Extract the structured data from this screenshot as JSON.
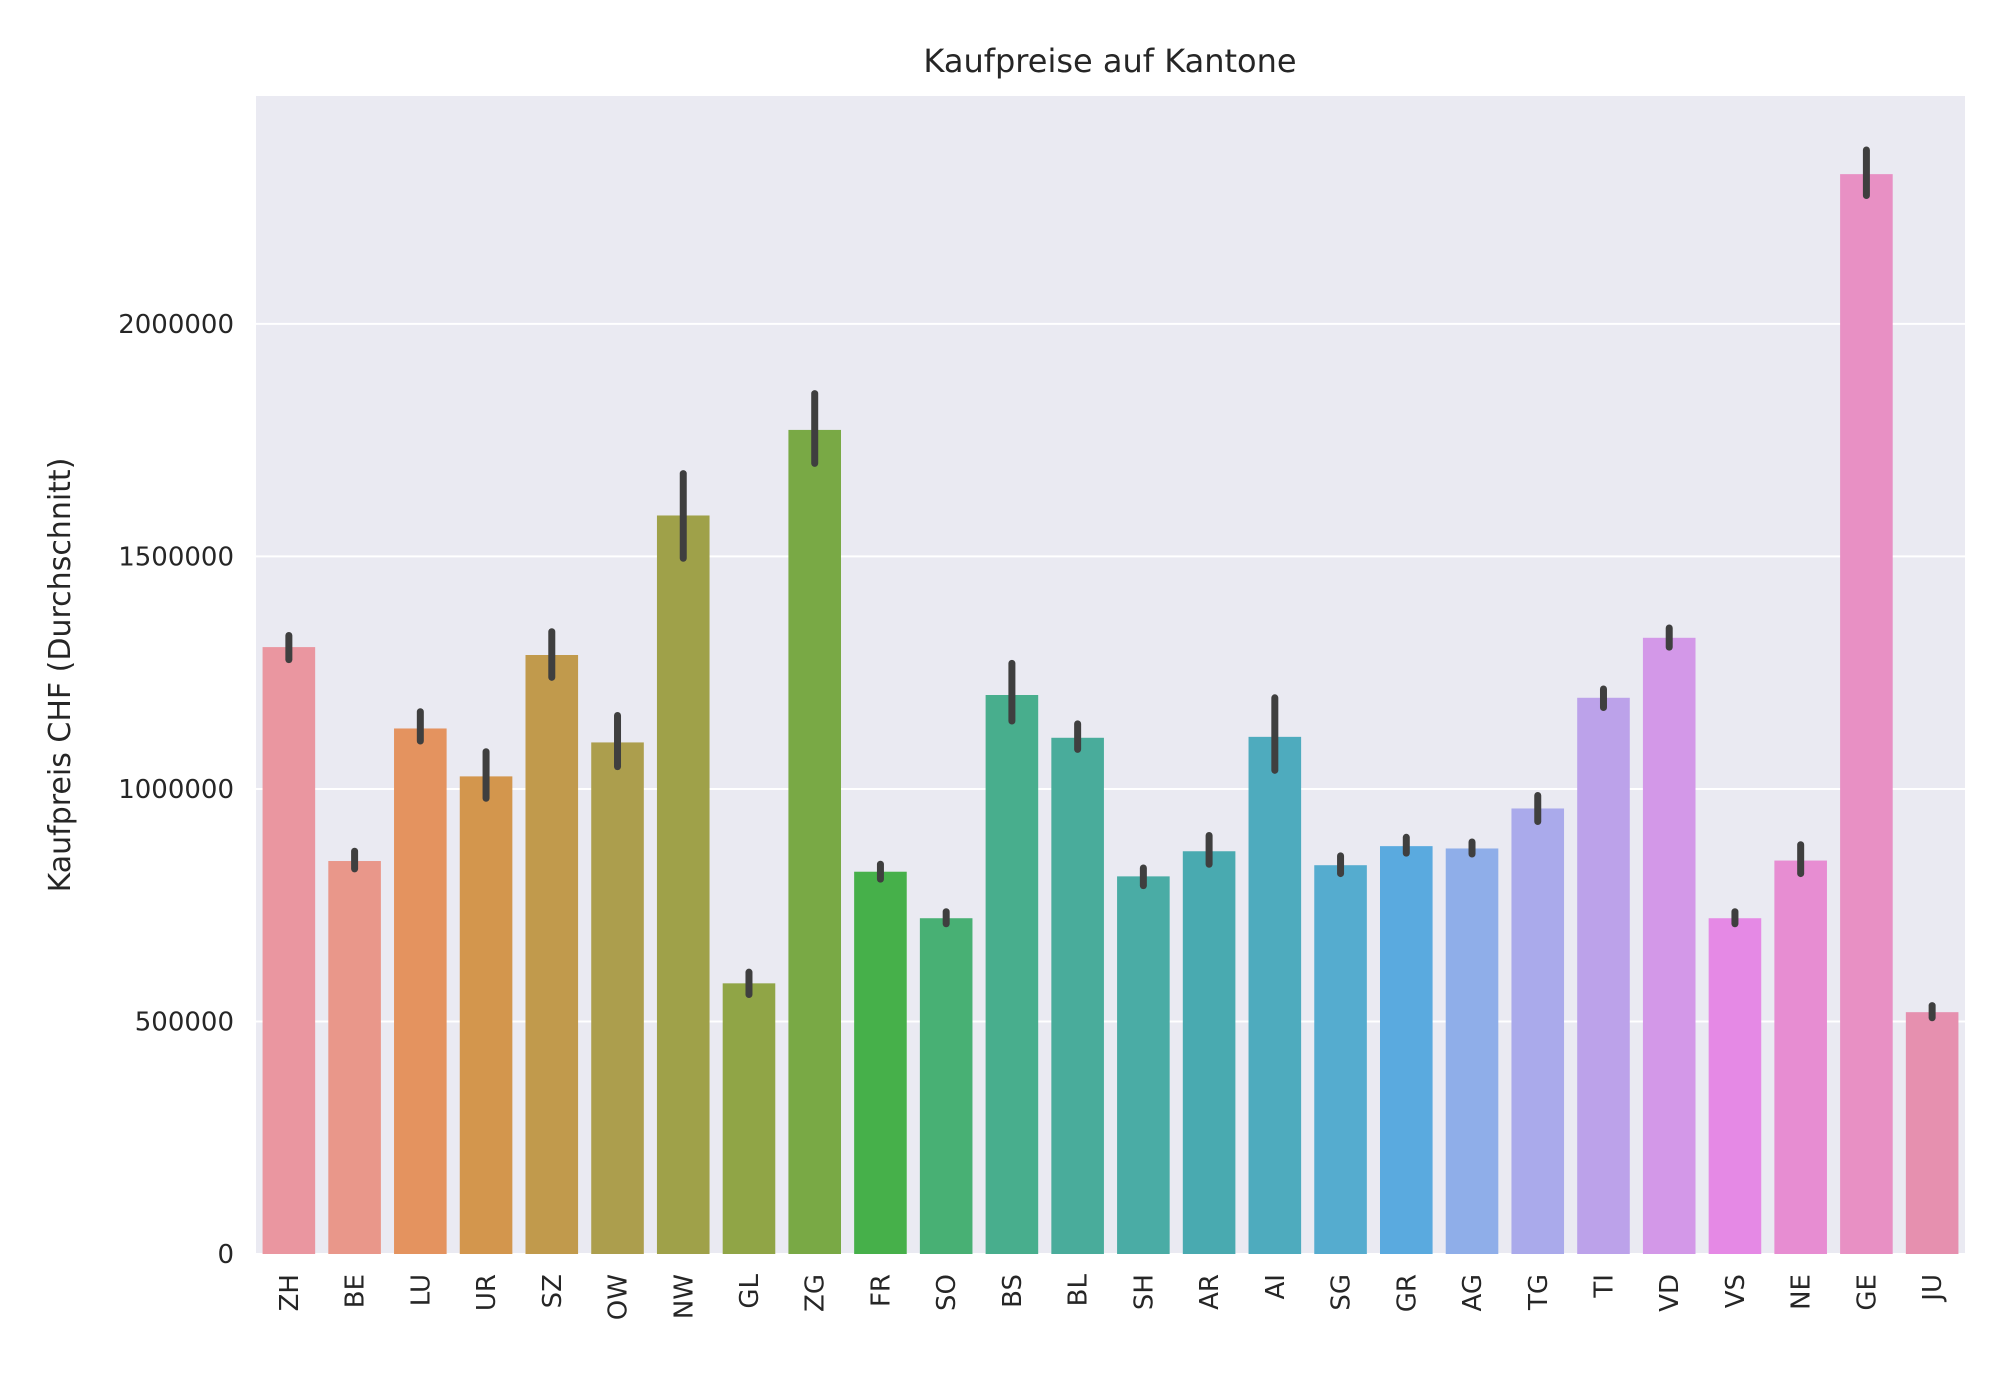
{
  "chart_data": {
    "type": "bar",
    "title": "Kaufpreise auf Kantone",
    "xlabel": "",
    "ylabel": "Kaufpreis CHF (Durchschnitt)",
    "ylim": [
      0,
      2490000
    ],
    "yticks": [
      0,
      500000,
      1000000,
      1500000,
      2000000
    ],
    "ytick_labels": [
      "0",
      "500000",
      "1000000",
      "1500000",
      "2000000"
    ],
    "grid": true,
    "categories": [
      "ZH",
      "BE",
      "LU",
      "UR",
      "SZ",
      "OW",
      "NW",
      "GL",
      "ZG",
      "FR",
      "SO",
      "BS",
      "BL",
      "SH",
      "AR",
      "AI",
      "SG",
      "GR",
      "AG",
      "TG",
      "TI",
      "VD",
      "VS",
      "NE",
      "GE",
      "JU"
    ],
    "values": [
      1305000,
      845000,
      1130000,
      1027000,
      1288000,
      1100000,
      1588000,
      582000,
      1772000,
      822000,
      722000,
      1202000,
      1110000,
      812000,
      866000,
      1112000,
      836000,
      877000,
      872000,
      958000,
      1196000,
      1325000,
      722000,
      846000,
      2322000,
      520000
    ],
    "ci_low": [
      1278000,
      828000,
      1103000,
      980000,
      1240000,
      1048000,
      1496000,
      558000,
      1700000,
      806000,
      710000,
      1146000,
      1085000,
      792000,
      838000,
      1040000,
      818000,
      862000,
      860000,
      930000,
      1175000,
      1305000,
      710000,
      818000,
      2276000,
      508000
    ],
    "ci_high": [
      1330000,
      866000,
      1166000,
      1080000,
      1338000,
      1158000,
      1678000,
      606000,
      1850000,
      838000,
      736000,
      1270000,
      1140000,
      830000,
      900000,
      1196000,
      856000,
      896000,
      886000,
      986000,
      1215000,
      1346000,
      736000,
      880000,
      2374000,
      534000
    ],
    "colors": [
      "#ea96a0",
      "#e9978a",
      "#e4935f",
      "#d3964d",
      "#c19a4c",
      "#ac9e4d",
      "#9fa149",
      "#90a546",
      "#79a945",
      "#46b04a",
      "#48b074",
      "#48ae8d",
      "#49ac9b",
      "#4aaca5",
      "#49aab0",
      "#4eabbe",
      "#55accf",
      "#5aaadf",
      "#8faee9",
      "#aaaaeb",
      "#bca2ea",
      "#d398e8",
      "#e589e5",
      "#e78dd2",
      "#e890c4",
      "#e690af"
    ]
  }
}
